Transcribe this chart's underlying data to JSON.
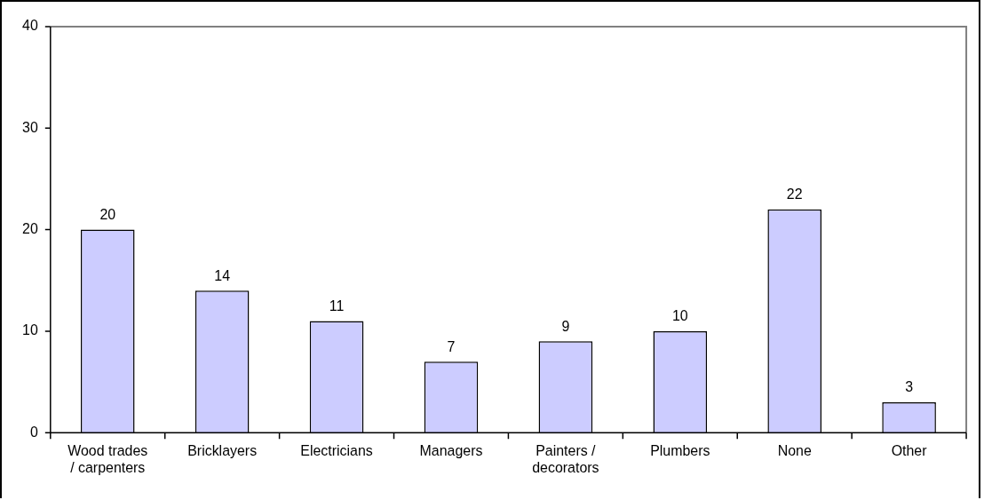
{
  "chart_data": {
    "type": "bar",
    "categories": [
      "Wood trades / carpenters",
      "Bricklayers",
      "Electricians",
      "Managers",
      "Painters / decorators",
      "Plumbers",
      "None",
      "Other"
    ],
    "values": [
      20,
      14,
      11,
      7,
      9,
      10,
      22,
      3
    ],
    "color": "#ccccff",
    "ylim": [
      0,
      40
    ],
    "yticks": [
      0,
      10,
      20,
      30,
      40
    ],
    "grid": false,
    "legend": false,
    "data_labels": true
  }
}
